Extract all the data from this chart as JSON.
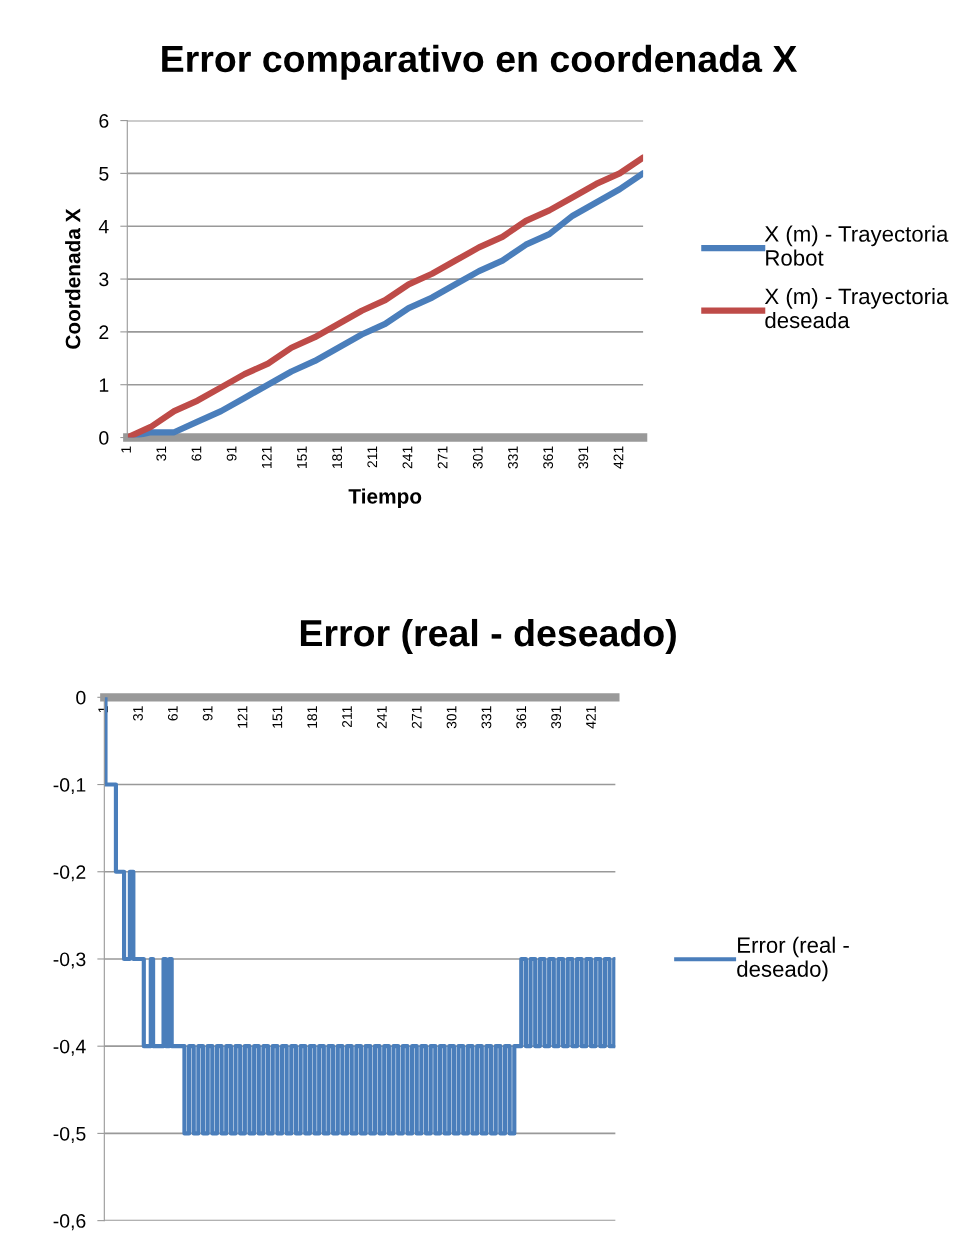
{
  "chart_data": [
    {
      "type": "line",
      "title": "Error comparativo en coordenada X",
      "xlabel": "Tiempo",
      "ylabel": "Coordenada X",
      "x": [
        1,
        21,
        41,
        61,
        81,
        101,
        121,
        141,
        161,
        181,
        201,
        221,
        241,
        261,
        281,
        301,
        321,
        341,
        361,
        381,
        401,
        421,
        441
      ],
      "series": [
        {
          "name": "X (m) - Trayectoria Robot",
          "color": "#4a7ebb",
          "values": [
            0,
            0.1,
            0.1,
            0.3,
            0.5,
            0.75,
            1.0,
            1.25,
            1.45,
            1.7,
            1.95,
            2.15,
            2.45,
            2.65,
            2.9,
            3.15,
            3.35,
            3.65,
            3.85,
            4.2,
            4.45,
            4.7,
            5.0
          ]
        },
        {
          "name": "X (m) - Trayectoria deseada",
          "color": "#be4b48",
          "values": [
            0,
            0.2,
            0.5,
            0.7,
            0.95,
            1.2,
            1.4,
            1.7,
            1.9,
            2.15,
            2.4,
            2.6,
            2.9,
            3.1,
            3.35,
            3.6,
            3.8,
            4.1,
            4.3,
            4.55,
            4.8,
            5.0,
            5.3
          ]
        }
      ],
      "xlim": [
        1,
        441
      ],
      "xticks": [
        1,
        31,
        61,
        91,
        121,
        151,
        181,
        211,
        241,
        271,
        301,
        331,
        361,
        391,
        421
      ],
      "ylim": [
        0,
        6
      ],
      "yticks": [
        0,
        1,
        2,
        3,
        4,
        5,
        6
      ],
      "grid": "y",
      "legend": "right"
    },
    {
      "type": "step",
      "title": "Error (real - deseado)",
      "series": [
        {
          "name": "Error (real - deseado)",
          "color": "#4a7ebb",
          "x": [
            1,
            2,
            11,
            18,
            23,
            26,
            35,
            41,
            43,
            52,
            54,
            57,
            59,
            70,
            74,
            78,
            82,
            86,
            90,
            94,
            98,
            102,
            106,
            110,
            114,
            118,
            122,
            126,
            130,
            134,
            138,
            142,
            146,
            150,
            154,
            158,
            162,
            166,
            170,
            174,
            178,
            182,
            186,
            190,
            194,
            198,
            202,
            206,
            210,
            214,
            218,
            222,
            226,
            230,
            234,
            238,
            242,
            246,
            250,
            254,
            258,
            262,
            266,
            270,
            274,
            278,
            282,
            286,
            290,
            294,
            298,
            302,
            306,
            310,
            314,
            318,
            322,
            326,
            330,
            334,
            338,
            342,
            346,
            350,
            354,
            360,
            364,
            368,
            372,
            376,
            380,
            384,
            388,
            392,
            396,
            400,
            404,
            408,
            412,
            416,
            420,
            424,
            428,
            432,
            436,
            440,
            441
          ],
          "values": [
            0,
            -0.1,
            -0.2,
            -0.3,
            -0.2,
            -0.3,
            -0.4,
            -0.3,
            -0.4,
            -0.3,
            -0.4,
            -0.3,
            -0.4,
            -0.5,
            -0.4,
            -0.5,
            -0.4,
            -0.5,
            -0.4,
            -0.5,
            -0.4,
            -0.5,
            -0.4,
            -0.5,
            -0.4,
            -0.5,
            -0.4,
            -0.5,
            -0.4,
            -0.5,
            -0.4,
            -0.5,
            -0.4,
            -0.5,
            -0.4,
            -0.5,
            -0.4,
            -0.5,
            -0.4,
            -0.5,
            -0.4,
            -0.5,
            -0.4,
            -0.5,
            -0.4,
            -0.5,
            -0.4,
            -0.5,
            -0.4,
            -0.5,
            -0.4,
            -0.5,
            -0.4,
            -0.5,
            -0.4,
            -0.5,
            -0.4,
            -0.5,
            -0.4,
            -0.5,
            -0.4,
            -0.5,
            -0.4,
            -0.5,
            -0.4,
            -0.5,
            -0.4,
            -0.5,
            -0.4,
            -0.5,
            -0.4,
            -0.5,
            -0.4,
            -0.5,
            -0.4,
            -0.5,
            -0.4,
            -0.5,
            -0.4,
            -0.5,
            -0.4,
            -0.5,
            -0.4,
            -0.5,
            -0.4,
            -0.3,
            -0.4,
            -0.3,
            -0.4,
            -0.3,
            -0.4,
            -0.3,
            -0.4,
            -0.3,
            -0.4,
            -0.3,
            -0.4,
            -0.3,
            -0.4,
            -0.3,
            -0.4,
            -0.3,
            -0.4,
            -0.3,
            -0.4,
            -0.3,
            -0.3
          ]
        }
      ],
      "xlim": [
        1,
        441
      ],
      "xticks": [
        1,
        31,
        61,
        91,
        121,
        151,
        181,
        211,
        241,
        271,
        301,
        331,
        361,
        391,
        421
      ],
      "ylim": [
        -0.6,
        0
      ],
      "yticks": [
        {
          "value": -0.6,
          "label": "-0,6"
        },
        {
          "value": -0.5,
          "label": "-0,5"
        },
        {
          "value": -0.4,
          "label": "-0,4"
        },
        {
          "value": -0.3,
          "label": "-0,3"
        },
        {
          "value": -0.2,
          "label": "-0,2"
        },
        {
          "value": -0.1,
          "label": "-0,1"
        },
        0
      ],
      "grid": "y",
      "legend": "right"
    }
  ]
}
